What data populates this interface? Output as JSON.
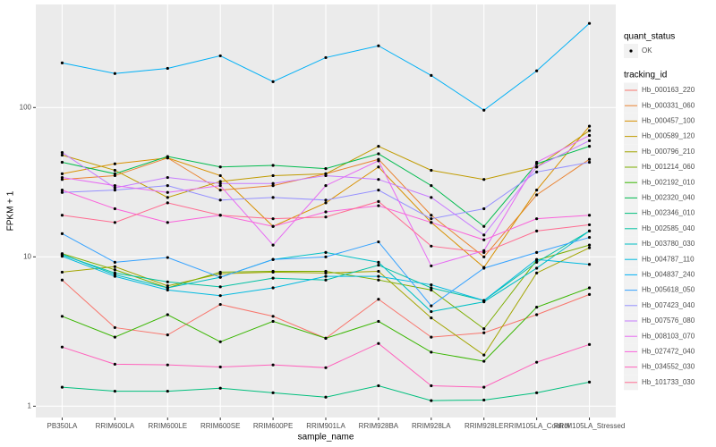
{
  "chart_data": {
    "type": "line",
    "x_label": "sample_name",
    "y_label": "FPKM + 1",
    "log_scale": true,
    "grid": true,
    "ylim": [
      0.84,
      490
    ],
    "yticks": [
      1,
      10,
      100
    ],
    "categories": [
      "PB350LA",
      "RRIM600LA",
      "RRIM600LE",
      "RRIM600SE",
      "RRIM600PE",
      "RRIM901LA",
      "RRIM928BA",
      "RRIM928LA",
      "RRIM928LE",
      "RRIM105LA_Control",
      "RRIM105LA_Stressed"
    ],
    "point_legend": {
      "title": "quant_status",
      "labels": [
        "OK"
      ]
    },
    "legend_title": "tracking_id",
    "series": [
      {
        "name": "Hb_000163_220",
        "color": "#F8766D",
        "values": [
          7.0,
          3.36,
          3.0,
          4.8,
          4.0,
          2.85,
          5.2,
          2.9,
          3.1,
          4.1,
          5.6
        ]
      },
      {
        "name": "Hb_000331_060",
        "color": "#EA8331",
        "values": [
          33,
          35,
          46,
          28,
          30,
          36,
          45,
          19,
          10,
          26,
          45
        ]
      },
      {
        "name": "Hb_000457_100",
        "color": "#D89000",
        "values": [
          36,
          42,
          46,
          35,
          16,
          23,
          40,
          17,
          8.5,
          28,
          75
        ]
      },
      {
        "name": "Hb_000589_120",
        "color": "#C09B00",
        "values": [
          48,
          38,
          25,
          32,
          35,
          36,
          55,
          38,
          33,
          40,
          70
        ]
      },
      {
        "name": "Hb_000796_210",
        "color": "#A3A500",
        "values": [
          7.9,
          8.6,
          6.4,
          7.7,
          7.9,
          7.8,
          8.0,
          3.9,
          2.2,
          7.8,
          11.5
        ]
      },
      {
        "name": "Hb_001214_060",
        "color": "#7CAE00",
        "values": [
          10.5,
          8.2,
          6.2,
          7.9,
          8.0,
          8.0,
          7.0,
          6.0,
          3.3,
          9.5,
          12
        ]
      },
      {
        "name": "Hb_002192_010",
        "color": "#39B600",
        "values": [
          4.0,
          2.9,
          4.1,
          2.7,
          3.7,
          2.85,
          3.7,
          2.3,
          2.0,
          4.6,
          6.2
        ]
      },
      {
        "name": "Hb_002320_040",
        "color": "#00BB4E",
        "values": [
          43,
          36,
          47,
          40,
          41,
          39,
          49,
          30,
          16,
          42,
          55
        ]
      },
      {
        "name": "Hb_002346_010",
        "color": "#00BF7D",
        "values": [
          1.34,
          1.26,
          1.26,
          1.32,
          1.23,
          1.15,
          1.37,
          1.09,
          1.1,
          1.23,
          1.45
        ]
      },
      {
        "name": "Hb_002585_040",
        "color": "#00C1A3",
        "values": [
          10.3,
          7.8,
          6.8,
          6.3,
          7.2,
          7.0,
          8.8,
          6.2,
          5.1,
          9.2,
          14.9
        ]
      },
      {
        "name": "Hb_003780_030",
        "color": "#00BFC4",
        "values": [
          10.4,
          7.6,
          6.2,
          7.3,
          9.6,
          10.7,
          9.2,
          4.3,
          5.0,
          8.4,
          14.9
        ]
      },
      {
        "name": "Hb_004787_110",
        "color": "#00BAE0",
        "values": [
          10.1,
          7.4,
          6.0,
          5.5,
          6.2,
          7.4,
          7.4,
          6.5,
          5.1,
          9.6,
          8.9
        ]
      },
      {
        "name": "Hb_004837_240",
        "color": "#00B0F6",
        "values": [
          199,
          169,
          183,
          222,
          149,
          216,
          259,
          164,
          96,
          176,
          366
        ]
      },
      {
        "name": "Hb_005618_050",
        "color": "#35A2FF",
        "values": [
          14.3,
          9.2,
          9.9,
          7.3,
          9.6,
          10,
          12.6,
          4.7,
          8.4,
          10.7,
          13.5
        ]
      },
      {
        "name": "Hb_007423_040",
        "color": "#9590FF",
        "values": [
          27,
          28,
          30,
          24,
          25,
          24,
          28,
          18,
          21,
          37,
          43
        ]
      },
      {
        "name": "Hb_007576_080",
        "color": "#C77CFF",
        "values": [
          50,
          29,
          34,
          31,
          31,
          35,
          33,
          25,
          14,
          40,
          60
        ]
      },
      {
        "name": "Hb_008103_070",
        "color": "#E76BF3",
        "values": [
          34,
          30,
          27,
          30,
          12,
          30,
          44,
          8.7,
          11,
          43,
          65
        ]
      },
      {
        "name": "Hb_027472_040",
        "color": "#FA62DB",
        "values": [
          28,
          21,
          17,
          19,
          16,
          20,
          22,
          17,
          13,
          18,
          19
        ]
      },
      {
        "name": "Hb_034552_030",
        "color": "#FF62BC",
        "values": [
          2.49,
          1.91,
          1.89,
          1.83,
          1.89,
          1.81,
          2.63,
          1.37,
          1.34,
          1.97,
          2.59
        ]
      },
      {
        "name": "Hb_101733_030",
        "color": "#FF6C91",
        "values": [
          19,
          17,
          23,
          19,
          18,
          18.5,
          23.5,
          11.8,
          10.7,
          14.9,
          16.4
        ]
      }
    ]
  }
}
